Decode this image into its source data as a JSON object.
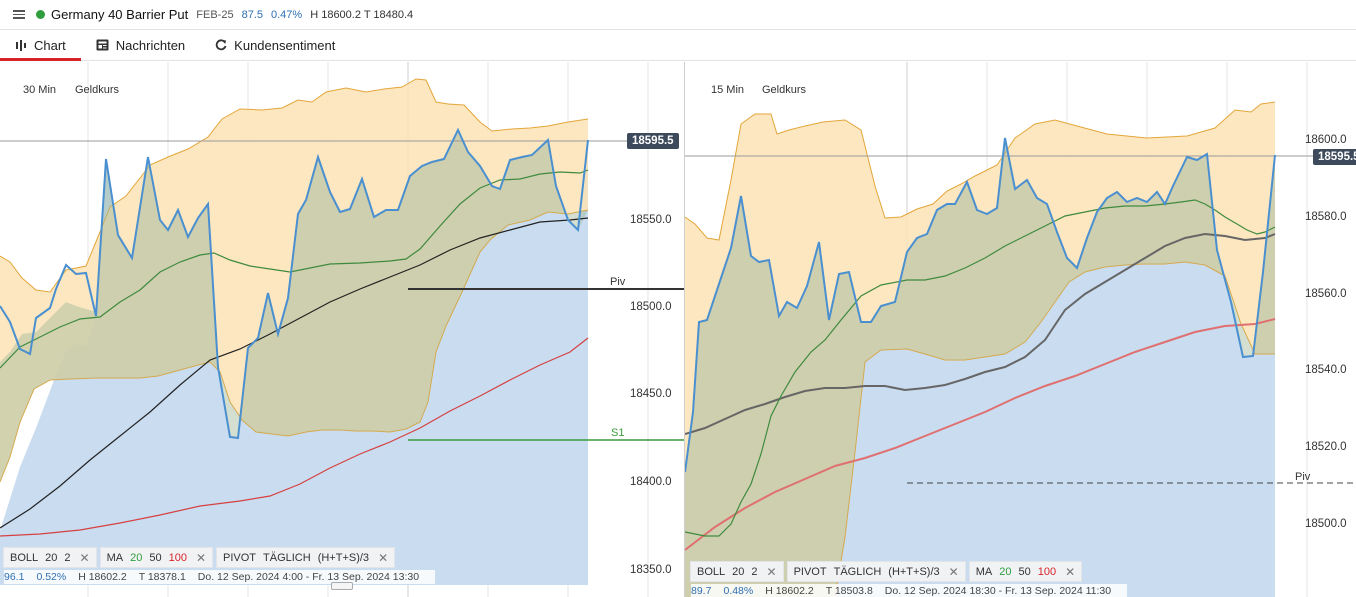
{
  "header": {
    "instrument": "Germany 40 Barrier Put",
    "expiry": "FEB-25",
    "price": "87.5",
    "change_pct": "0.47%",
    "high_low": "H 18600.2  T 18480.4",
    "status_color": "#2e9e3f",
    "price_color": "#2f6fb3"
  },
  "tabs": [
    {
      "label": "Chart",
      "icon": "chart-icon",
      "active": true
    },
    {
      "label": "Nachrichten",
      "icon": "news-icon",
      "active": false
    },
    {
      "label": "Kundensentiment",
      "icon": "refresh-icon",
      "active": false
    }
  ],
  "charts": [
    {
      "timeframe": "30 Min",
      "price_type": "Geldkurs",
      "y_axis_labels": [
        "18550.0",
        "18500.0",
        "18450.0",
        "18400.0",
        "18350.0"
      ],
      "last_price": "18595.5",
      "pivot_label": "Piv",
      "s1_label": "S1",
      "indicators": [
        {
          "name": "BOLL",
          "params": [
            "20",
            "2"
          ]
        },
        {
          "name": "MA",
          "params": [
            "20",
            "50",
            "100"
          ]
        },
        {
          "name": "PIVOT",
          "params": [
            "TÄGLICH",
            "(H+T+S)/3"
          ]
        }
      ],
      "stats": {
        "price": "96.1",
        "pct": "0.52%",
        "high": "H 18602.2",
        "low": "T 18378.1",
        "range": "Do. 12 Sep. 2024 4:00 - Fr. 13 Sep. 2024 13:30"
      }
    },
    {
      "timeframe": "15 Min",
      "price_type": "Geldkurs",
      "y_axis_labels": [
        "18600.0",
        "18580.0",
        "18560.0",
        "18540.0",
        "18520.0",
        "18500.0"
      ],
      "last_price": "18595.5",
      "pivot_label": "Piv",
      "indicators": [
        {
          "name": "BOLL",
          "params": [
            "20",
            "2"
          ]
        },
        {
          "name": "PIVOT",
          "params": [
            "TÄGLICH",
            "(H+T+S)/3"
          ]
        },
        {
          "name": "MA",
          "params": [
            "20",
            "50",
            "100"
          ]
        }
      ],
      "stats": {
        "price": "89.7",
        "pct": "0.48%",
        "high": "H 18602.2",
        "low": "T 18503.8",
        "range": "Do. 12 Sep. 2024 18:30 - Fr. 13 Sep. 2024 11:30"
      }
    }
  ],
  "colors": {
    "price_line": "#4a8fd0",
    "boll_fill": "#fbe3b6",
    "boll_edge": "#e3a63a",
    "ma20": "#3f8a3f",
    "ma50": "#222222",
    "ma100": "#d64040",
    "area_fill": "#c9dcf0",
    "ma_param_20": "#2e9e3f",
    "ma_param_100": "#d9232a"
  }
}
